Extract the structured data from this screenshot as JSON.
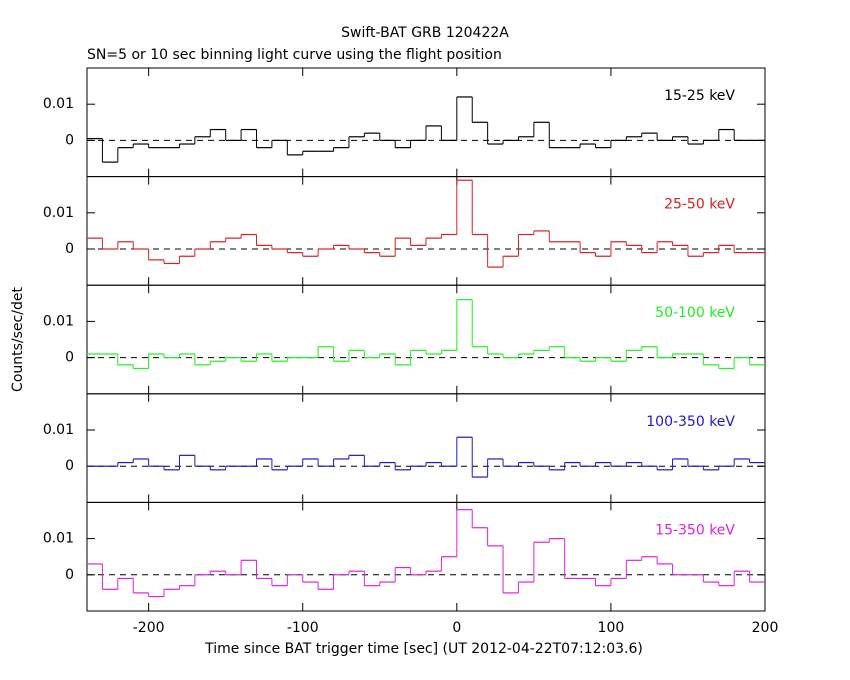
{
  "chart_data": [
    {
      "type": "step",
      "title": "Swift-BAT GRB 120422A",
      "subtitle": "SN=5 or 10 sec binning light curve using the flight position",
      "series": [
        {
          "name": "15-25 keV",
          "color": "#000000",
          "x": [
            -235,
            -225,
            -215,
            -205,
            -195,
            -185,
            -175,
            -165,
            -155,
            -145,
            -135,
            -125,
            -115,
            -105,
            -95,
            -85,
            -75,
            -65,
            -55,
            -45,
            -35,
            -25,
            -15,
            -5,
            5,
            15,
            25,
            35,
            45,
            55,
            65,
            75,
            85,
            95,
            105,
            115,
            125,
            135,
            145,
            155,
            165,
            175,
            185,
            195
          ],
          "values": [
            0.0005,
            -0.006,
            -0.002,
            -0.001,
            -0.002,
            -0.002,
            -0.001,
            0.001,
            0.003,
            0,
            0.003,
            -0.002,
            0,
            -0.004,
            -0.003,
            -0.003,
            -0.002,
            0.001,
            0.002,
            0,
            -0.002,
            0,
            0.004,
            0,
            0.012,
            0.005,
            -0.001,
            0,
            0.001,
            0.005,
            -0.002,
            -0.002,
            -0.001,
            -0.002,
            0,
            0.001,
            0.002,
            0,
            0.001,
            -0.001,
            0,
            0.003,
            0,
            0
          ]
        }
      ],
      "xlim": [
        -240,
        200
      ],
      "xticks": [
        -200,
        -100,
        0,
        100,
        200
      ],
      "ylim": [
        -0.01,
        0.02
      ],
      "yticks": [
        0,
        0.01
      ]
    },
    {
      "type": "step",
      "series": [
        {
          "name": "25-50 keV",
          "color": "#d62020",
          "x": [
            -235,
            -225,
            -215,
            -205,
            -195,
            -185,
            -175,
            -165,
            -155,
            -145,
            -135,
            -125,
            -115,
            -105,
            -95,
            -85,
            -75,
            -65,
            -55,
            -45,
            -35,
            -25,
            -15,
            -5,
            5,
            15,
            25,
            35,
            45,
            55,
            65,
            75,
            85,
            95,
            105,
            115,
            125,
            135,
            145,
            155,
            165,
            175,
            185,
            195
          ],
          "values": [
            0.003,
            0,
            0.002,
            0,
            -0.003,
            -0.004,
            -0.002,
            0,
            0.002,
            0.003,
            0.004,
            0.001,
            0,
            -0.001,
            -0.002,
            0,
            0.001,
            0,
            -0.001,
            -0.002,
            0.003,
            0.001,
            0.003,
            0.004,
            0.019,
            0.004,
            -0.005,
            -0.002,
            0.004,
            0.005,
            0.002,
            0.002,
            -0.001,
            -0.002,
            0.002,
            0.001,
            -0.001,
            0.002,
            0.001,
            -0.002,
            -0.001,
            0.001,
            -0.001,
            -0.001
          ]
        }
      ],
      "xlim": [
        -240,
        200
      ],
      "xticks": [
        -200,
        -100,
        0,
        100,
        200
      ],
      "ylim": [
        -0.01,
        0.02
      ],
      "yticks": [
        0,
        0.01
      ]
    },
    {
      "type": "step",
      "ylabel": "Counts/sec/det",
      "series": [
        {
          "name": "50-100 keV",
          "color": "#22ee22",
          "x": [
            -235,
            -225,
            -215,
            -205,
            -195,
            -185,
            -175,
            -165,
            -155,
            -145,
            -135,
            -125,
            -115,
            -105,
            -95,
            -85,
            -75,
            -65,
            -55,
            -45,
            -35,
            -25,
            -15,
            -5,
            5,
            15,
            25,
            35,
            45,
            55,
            65,
            75,
            85,
            95,
            105,
            115,
            125,
            135,
            145,
            155,
            165,
            175,
            185,
            195
          ],
          "values": [
            0.001,
            0.001,
            -0.002,
            -0.003,
            0.001,
            0,
            0.001,
            -0.002,
            -0.001,
            0,
            -0.001,
            0.001,
            -0.001,
            0,
            0,
            0.003,
            -0.001,
            0.002,
            0,
            0.001,
            -0.002,
            0.002,
            0.001,
            0.002,
            0.016,
            0.003,
            0.001,
            0,
            0.001,
            0.002,
            0.003,
            0,
            -0.001,
            0,
            -0.001,
            0.002,
            0.003,
            0,
            0.001,
            0.001,
            -0.002,
            -0.003,
            0,
            -0.002
          ]
        }
      ],
      "xlim": [
        -240,
        200
      ],
      "xticks": [
        -200,
        -100,
        0,
        100,
        200
      ],
      "ylim": [
        -0.01,
        0.02
      ],
      "yticks": [
        0,
        0.01
      ]
    },
    {
      "type": "step",
      "series": [
        {
          "name": "100-350 keV",
          "color": "#1a1acc",
          "x": [
            -235,
            -225,
            -215,
            -205,
            -195,
            -185,
            -175,
            -165,
            -155,
            -145,
            -135,
            -125,
            -115,
            -105,
            -95,
            -85,
            -75,
            -65,
            -55,
            -45,
            -35,
            -25,
            -15,
            -5,
            5,
            15,
            25,
            35,
            45,
            55,
            65,
            75,
            85,
            95,
            105,
            115,
            125,
            135,
            145,
            155,
            165,
            175,
            185,
            195
          ],
          "values": [
            0,
            0,
            0.001,
            0.002,
            0,
            -0.001,
            0.003,
            0,
            -0.001,
            0,
            0,
            0.002,
            -0.001,
            0,
            0.002,
            0,
            0.002,
            0.003,
            0,
            0.001,
            -0.001,
            0,
            0.001,
            0,
            0.008,
            -0.003,
            0.002,
            0,
            0.001,
            0,
            -0.001,
            0.001,
            0,
            0.001,
            0,
            0.001,
            0,
            -0.001,
            0.002,
            0,
            -0.001,
            0,
            0.002,
            0.001
          ]
        }
      ],
      "xlim": [
        -240,
        200
      ],
      "xticks": [
        -200,
        -100,
        0,
        100,
        200
      ],
      "ylim": [
        -0.01,
        0.02
      ],
      "yticks": [
        0,
        0.01
      ]
    },
    {
      "type": "step",
      "xlabel": "Time since BAT trigger time [sec] (UT 2012-04-22T07:12:03.6)",
      "series": [
        {
          "name": "15-350 keV",
          "color": "#dd22dd",
          "x": [
            -235,
            -225,
            -215,
            -205,
            -195,
            -185,
            -175,
            -165,
            -155,
            -145,
            -135,
            -125,
            -115,
            -105,
            -95,
            -85,
            -75,
            -65,
            -55,
            -45,
            -35,
            -25,
            -15,
            -5,
            5,
            15,
            25,
            35,
            45,
            55,
            65,
            75,
            85,
            95,
            105,
            115,
            125,
            135,
            145,
            155,
            165,
            175,
            185,
            195
          ],
          "values": [
            0.003,
            -0.004,
            -0.001,
            -0.005,
            -0.006,
            -0.004,
            -0.003,
            0,
            0.001,
            0,
            0.004,
            -0.001,
            -0.003,
            0,
            -0.002,
            -0.004,
            0,
            0.001,
            -0.003,
            -0.002,
            0.002,
            0,
            0.001,
            0.005,
            0.018,
            0.013,
            0.008,
            -0.005,
            -0.002,
            0.009,
            0.01,
            -0.001,
            -0.001,
            -0.003,
            -0.001,
            0.004,
            0.005,
            0.003,
            0,
            0,
            -0.002,
            -0.003,
            0.001,
            -0.002
          ]
        }
      ],
      "xlim": [
        -240,
        200
      ],
      "xticks": [
        -200,
        -100,
        0,
        100,
        200
      ],
      "ylim": [
        -0.01,
        0.02
      ],
      "yticks": [
        0,
        0.01
      ]
    }
  ]
}
